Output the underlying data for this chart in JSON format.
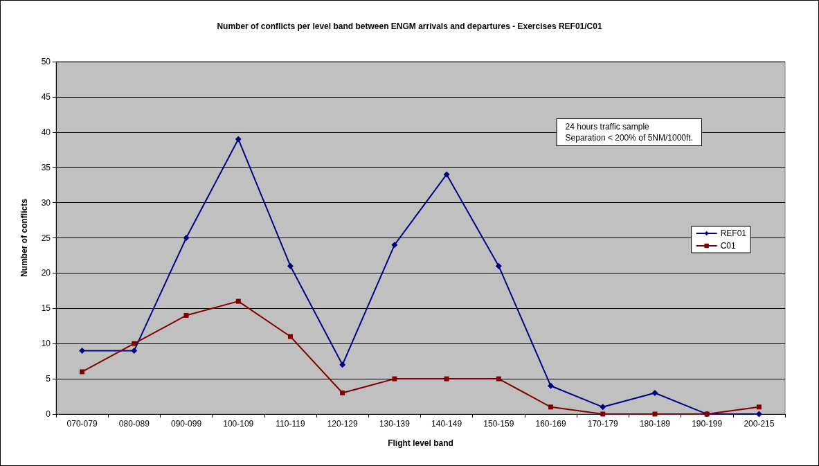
{
  "chart_data": {
    "type": "line",
    "title": "Number of conflicts per level band between ENGM arrivals and departures - Exercises REF01/C01",
    "xlabel": "Flight level band",
    "ylabel": "Number of conflicts",
    "categories": [
      "070-079",
      "080-089",
      "090-099",
      "100-109",
      "110-119",
      "120-129",
      "130-139",
      "140-149",
      "150-159",
      "160-169",
      "170-179",
      "180-189",
      "190-199",
      "200-215"
    ],
    "series": [
      {
        "name": "REF01",
        "color": "#000080",
        "marker": "diamond",
        "values": [
          9,
          9,
          25,
          39,
          21,
          7,
          24,
          34,
          21,
          4,
          1,
          3,
          0,
          0
        ]
      },
      {
        "name": "C01",
        "color": "#800000",
        "marker": "square",
        "values": [
          6,
          10,
          14,
          16,
          11,
          3,
          5,
          5,
          5,
          1,
          0,
          0,
          0,
          1
        ]
      }
    ],
    "ylim": [
      0,
      50
    ],
    "yticks": [
      0,
      5,
      10,
      15,
      20,
      25,
      30,
      35,
      40,
      45,
      50
    ],
    "grid": "y",
    "legend": "right",
    "annotations": [
      "24 hours traffic sample\nSeparation < 200% of 5NM/1000ft."
    ]
  }
}
